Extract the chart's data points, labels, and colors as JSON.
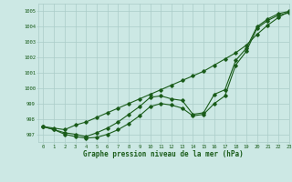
{
  "title": "Graphe pression niveau de la mer (hPa)",
  "bg_color": "#cce8e4",
  "grid_color": "#aaccc8",
  "line_color": "#1a5c1a",
  "xlim": [
    -0.5,
    23
  ],
  "ylim": [
    996.5,
    1005.5
  ],
  "yticks": [
    997,
    998,
    999,
    1000,
    1001,
    1002,
    1003,
    1004,
    1005
  ],
  "xticks": [
    0,
    1,
    2,
    3,
    4,
    5,
    6,
    7,
    8,
    9,
    10,
    11,
    12,
    13,
    14,
    15,
    16,
    17,
    18,
    19,
    20,
    21,
    22,
    23
  ],
  "line1": [
    997.5,
    997.4,
    997.3,
    997.6,
    997.8,
    998.1,
    998.4,
    998.7,
    999.0,
    999.3,
    999.6,
    999.9,
    1000.2,
    1000.5,
    1000.8,
    1001.1,
    1001.5,
    1001.9,
    1002.3,
    1002.8,
    1003.5,
    1004.1,
    1004.6,
    1005.0
  ],
  "line2": [
    997.5,
    997.3,
    997.1,
    997.0,
    996.85,
    997.1,
    997.4,
    997.8,
    998.3,
    998.8,
    999.4,
    999.5,
    999.3,
    999.2,
    998.3,
    998.4,
    999.6,
    999.9,
    1001.8,
    1002.6,
    1004.0,
    1004.5,
    1004.85,
    1005.0
  ],
  "line3": [
    997.5,
    997.3,
    997.0,
    996.85,
    996.75,
    996.8,
    997.0,
    997.3,
    997.7,
    998.2,
    998.8,
    999.0,
    998.9,
    998.7,
    998.2,
    998.3,
    999.0,
    999.5,
    1001.5,
    1002.4,
    1003.9,
    1004.4,
    1004.75,
    1004.9
  ]
}
